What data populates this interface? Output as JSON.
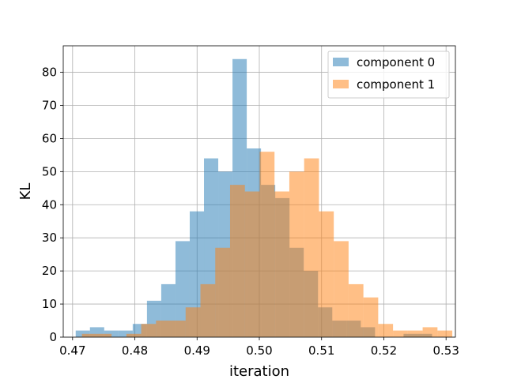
{
  "chart_data": {
    "type": "histogram",
    "xlabel": "iteration",
    "ylabel": "KL",
    "xlim": [
      0.4685,
      0.5315
    ],
    "ylim": [
      0,
      88
    ],
    "xticks": [
      0.47,
      0.48,
      0.49,
      0.5,
      0.51,
      0.52,
      0.53
    ],
    "xtick_labels": [
      "0.47",
      "0.48",
      "0.49",
      "0.50",
      "0.51",
      "0.52",
      "0.53"
    ],
    "yticks": [
      0,
      10,
      20,
      30,
      40,
      50,
      60,
      70,
      80
    ],
    "ytick_labels": [
      "0",
      "10",
      "20",
      "30",
      "40",
      "50",
      "60",
      "70",
      "80"
    ],
    "grid": true,
    "legend_position": "top-right",
    "series": [
      {
        "name": "component 0",
        "color": "#1f77b4",
        "alpha": 0.5,
        "bin_edges": [
          0.4705,
          0.47279,
          0.47508,
          0.47737,
          0.47966,
          0.48195,
          0.48424,
          0.48653,
          0.48882,
          0.49111,
          0.4934,
          0.49569,
          0.49798,
          0.50027,
          0.50256,
          0.50485,
          0.50714,
          0.50943,
          0.51172,
          0.51401,
          0.5163,
          0.51859,
          0.52088,
          0.52317,
          0.52546,
          0.52775
        ],
        "counts": [
          2,
          3,
          2,
          2,
          4,
          11,
          16,
          29,
          38,
          54,
          50,
          84,
          57,
          46,
          42,
          27,
          20,
          9,
          5,
          5,
          3,
          0,
          0,
          1,
          1
        ]
      },
      {
        "name": "component 1",
        "color": "#ff7f0e",
        "alpha": 0.5,
        "bin_edges": [
          0.4715,
          0.47388,
          0.47626,
          0.47864,
          0.48102,
          0.4834,
          0.48578,
          0.48816,
          0.49054,
          0.49292,
          0.4953,
          0.49768,
          0.50006,
          0.50244,
          0.50482,
          0.5072,
          0.50958,
          0.51196,
          0.51434,
          0.51672,
          0.5191,
          0.52148,
          0.52386,
          0.52624,
          0.52862,
          0.531
        ],
        "counts": [
          1,
          1,
          0,
          1,
          4,
          5,
          5,
          9,
          16,
          27,
          46,
          44,
          56,
          44,
          50,
          54,
          38,
          29,
          16,
          12,
          4,
          2,
          2,
          3,
          2
        ]
      }
    ]
  }
}
